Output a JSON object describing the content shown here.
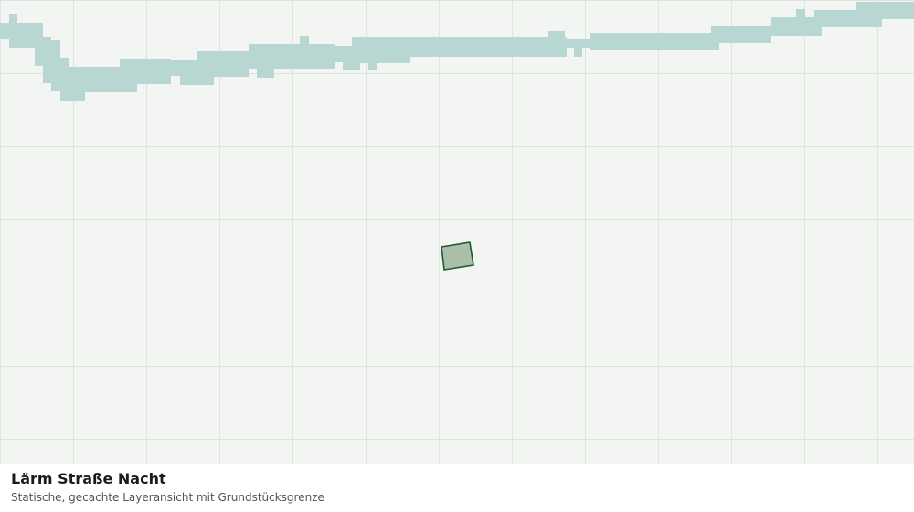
{
  "map": {
    "layer_name": "Lärm Straße Nacht",
    "colors": {
      "background": "#f3f5f2",
      "grid": "#dfe3de",
      "noise_zone": "#b8d6d2",
      "parcel_fill": "#a9bfa9",
      "parcel_stroke": "#1f5a33"
    }
  },
  "caption": {
    "title": "Lärm Straße Nacht",
    "subtitle": "Statische, gecachte Layeransicht mit Grundstücksgrenze"
  }
}
